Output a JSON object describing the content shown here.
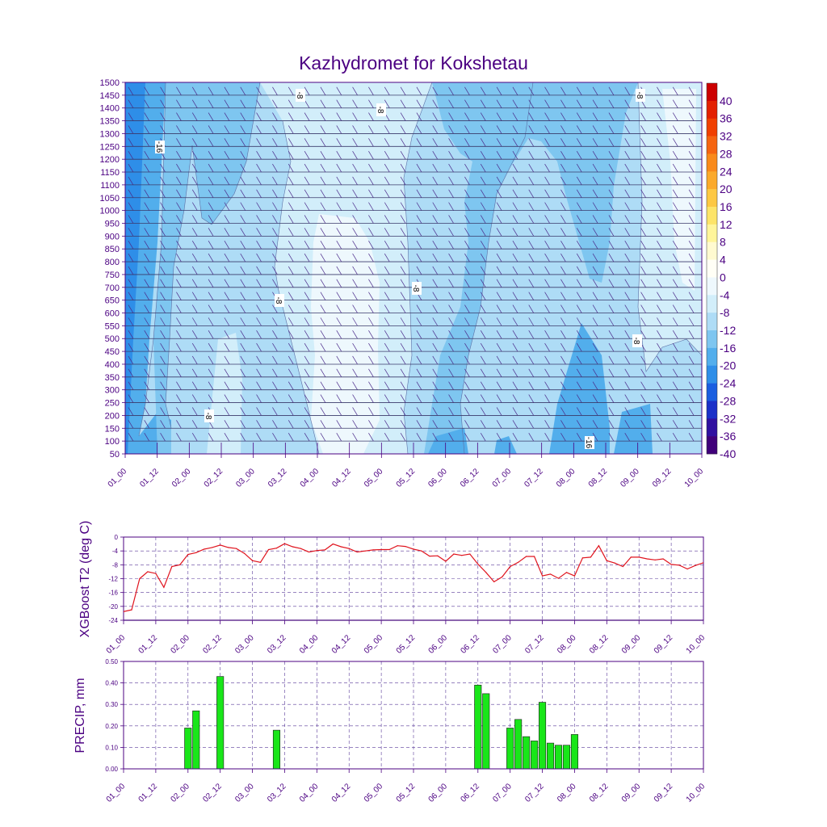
{
  "title": "Kazhydromet for Kokshetau",
  "colors": {
    "axis": "#4b0082",
    "line": "#e0141e",
    "bar": "#19e619",
    "grid": "#5a3a9a",
    "contour": "#5b6fa6",
    "zero_line": "#3a3a6a"
  },
  "time_ticks": [
    "01_00",
    "01_12",
    "02_00",
    "02_12",
    "03_00",
    "03_12",
    "04_00",
    "04_12",
    "05_00",
    "05_12",
    "06_00",
    "06_12",
    "07_00",
    "07_12",
    "08_00",
    "08_12",
    "09_00",
    "09_12",
    "10_00"
  ],
  "chart_data": [
    {
      "type": "heatmap",
      "title": "Kazhydromet for Kokshetau",
      "y_ticks": [
        "1500",
        "1450",
        "1400",
        "1350",
        "1300",
        "1250",
        "1200",
        "1150",
        "1100",
        "1050",
        "1000",
        "950",
        "900",
        "850",
        "800",
        "750",
        "700",
        "650",
        "600",
        "550",
        "500",
        "450",
        "400",
        "350",
        "300",
        "250",
        "200",
        "150",
        "100",
        "50"
      ],
      "ylim": [
        50,
        1500
      ],
      "xlim": [
        0,
        216
      ],
      "colorbar": {
        "labels": [
          "40",
          "36",
          "32",
          "28",
          "24",
          "20",
          "16",
          "12",
          "8",
          "4",
          "0",
          "-4",
          "-8",
          "-12",
          "-16",
          "-20",
          "-24",
          "-28",
          "-32",
          "-36",
          "-40"
        ],
        "colors": [
          "#cc0000",
          "#e32000",
          "#f04000",
          "#f56410",
          "#f98a1a",
          "#fbaa2a",
          "#fdc842",
          "#fde468",
          "#fff59a",
          "#fffad0",
          "#fffff6",
          "#eef8fd",
          "#d2eefa",
          "#aedcf6",
          "#7ec6f0",
          "#52aeec",
          "#2e8ee8",
          "#1a5ee0",
          "#1a30c8",
          "#3010a0",
          "#40007a"
        ]
      },
      "contour_labels": [
        "-16",
        "-8",
        "-8",
        "-8",
        "-8",
        "-8",
        "-8",
        "-8",
        "-16"
      ],
      "series": "temperature (deg C) with wind barbs, levels 50-1500"
    },
    {
      "type": "line",
      "ylabel": "XGBoost T2 (deg C)",
      "y_ticks": [
        "0",
        "-4",
        "-8",
        "-12",
        "-16",
        "-20",
        "-24"
      ],
      "ylim": [
        -24,
        0
      ],
      "x": [
        0,
        3,
        6,
        9,
        12,
        15,
        18,
        21,
        24,
        27,
        30,
        33,
        36,
        39,
        42,
        45,
        48,
        51,
        54,
        57,
        60,
        63,
        66,
        69,
        72,
        75,
        78,
        81,
        84,
        87,
        90,
        93,
        96,
        99,
        102,
        105,
        108,
        111,
        114,
        117,
        120,
        123,
        126,
        129,
        132,
        135,
        138,
        141,
        144,
        147,
        150,
        153,
        156,
        159,
        162,
        165,
        168,
        171,
        174,
        177,
        180,
        183,
        186,
        189,
        192,
        195,
        198,
        201,
        204,
        207,
        210,
        213,
        216
      ],
      "values": [
        -21.5,
        -21,
        -12,
        -10,
        -10.5,
        -14.5,
        -8.5,
        -8,
        -5,
        -4.5,
        -3.5,
        -3,
        -2.3,
        -3,
        -3.3,
        -4.7,
        -6.8,
        -7.3,
        -3.6,
        -3.2,
        -1.9,
        -2.8,
        -3.3,
        -4.3,
        -3.9,
        -3.7,
        -2,
        -2.8,
        -3.3,
        -4.3,
        -4,
        -3.7,
        -3.6,
        -3.6,
        -2.5,
        -2.7,
        -3.5,
        -4,
        -5.5,
        -5.4,
        -7,
        -4.9,
        -5.3,
        -4.9,
        -7.8,
        -10.2,
        -12.9,
        -11.5,
        -8.5,
        -7.3,
        -5.6,
        -5.6,
        -11.2,
        -10.7,
        -11.9,
        -10.2,
        -11.2,
        -6,
        -5.8,
        -2.5,
        -6.8,
        -7.5,
        -8.5,
        -5.8,
        -5.8,
        -6.3,
        -6.6,
        -6.3,
        -7.9,
        -8.1,
        -9.2,
        -8.2,
        -7.4
      ]
    },
    {
      "type": "bar",
      "ylabel": "PRECIP, mm",
      "y_ticks": [
        "0.50",
        "0.40",
        "0.30",
        "0.20",
        "0.10",
        "0.00"
      ],
      "ylim": [
        0,
        0.5
      ],
      "x": [
        24,
        27,
        36,
        57,
        132,
        135,
        144,
        147,
        150,
        153,
        156,
        159,
        162,
        165,
        168
      ],
      "values": [
        0.19,
        0.27,
        0.43,
        0.18,
        0.39,
        0.35,
        0.19,
        0.23,
        0.15,
        0.13,
        0.31,
        0.12,
        0.11,
        0.11,
        0.16
      ]
    }
  ]
}
